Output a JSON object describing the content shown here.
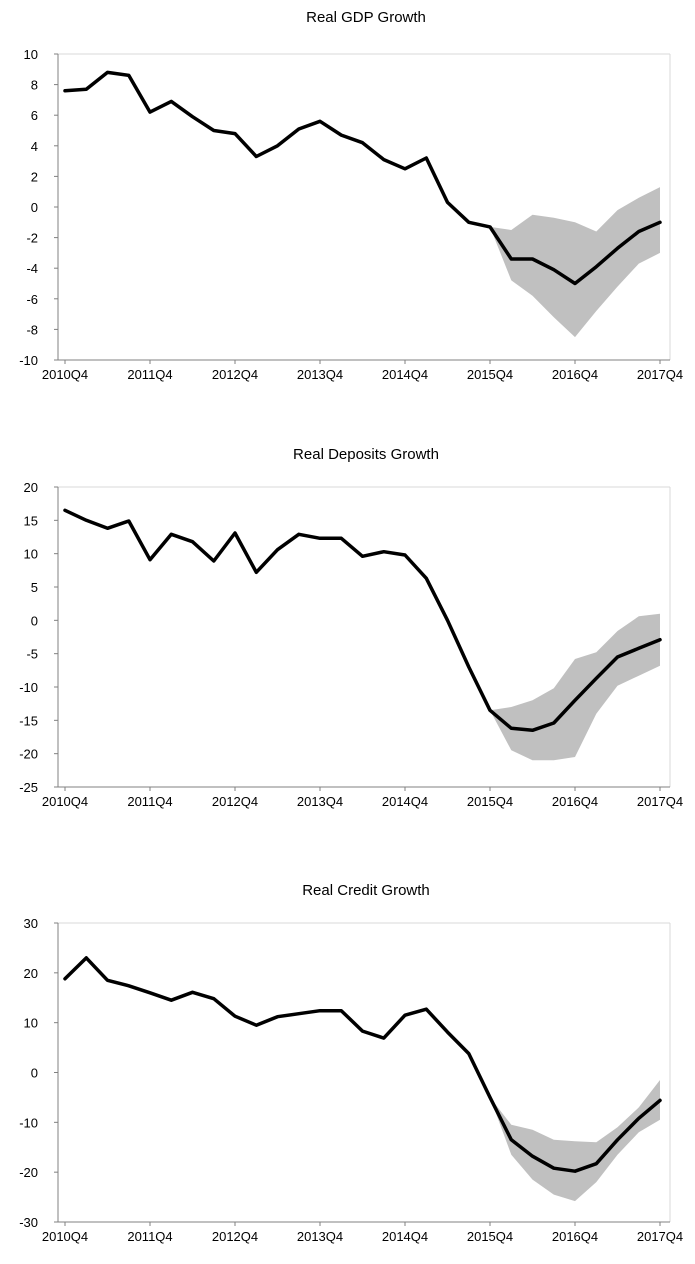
{
  "chart_data": [
    {
      "type": "line",
      "title": "Real GDP Growth",
      "xlabel": "",
      "ylabel": "",
      "ylim": [
        -10,
        10
      ],
      "yticks": [
        10,
        8,
        6,
        4,
        2,
        0,
        -2,
        -4,
        -6,
        -8,
        -10
      ],
      "xtick_labels": [
        "2010Q4",
        "2011Q4",
        "2012Q4",
        "2013Q4",
        "2014Q4",
        "2015Q4",
        "2016Q4",
        "2017Q4"
      ],
      "grid": false,
      "colors": {
        "line": "#000000",
        "band": "#c0c0c0",
        "axis": "#808080"
      },
      "series": [
        {
          "values": [
            7.6,
            7.7,
            8.8,
            8.6,
            6.2,
            6.9,
            5.9,
            5.0,
            4.8,
            3.3,
            4.0,
            5.1,
            5.6,
            4.7,
            4.2,
            3.1,
            2.5,
            3.2,
            0.3,
            -1.0,
            -1.3,
            -3.4,
            -3.4,
            -4.1,
            -5.0,
            -3.9,
            -2.7,
            -1.6,
            -1.0
          ]
        }
      ],
      "band": {
        "start_index": 20,
        "lower": [
          -1.3,
          -4.8,
          -5.8,
          -7.2,
          -8.5,
          -6.8,
          -5.2,
          -3.7,
          -3.0
        ],
        "upper": [
          -1.3,
          -1.5,
          -0.5,
          -0.7,
          -1.0,
          -1.6,
          -0.2,
          0.6,
          1.3
        ]
      }
    },
    {
      "type": "line",
      "title": "Real Deposits Growth",
      "xlabel": "",
      "ylabel": "",
      "ylim": [
        -25,
        20
      ],
      "yticks": [
        20,
        15,
        10,
        5,
        0,
        -5,
        -10,
        -15,
        -20,
        -25
      ],
      "xtick_labels": [
        "2010Q4",
        "2011Q4",
        "2012Q4",
        "2013Q4",
        "2014Q4",
        "2015Q4",
        "2016Q4",
        "2017Q4"
      ],
      "grid": false,
      "colors": {
        "line": "#000000",
        "band": "#c0c0c0",
        "axis": "#808080"
      },
      "series": [
        {
          "values": [
            16.5,
            15.0,
            13.8,
            14.9,
            9.1,
            12.9,
            11.8,
            8.9,
            13.1,
            7.2,
            10.6,
            12.9,
            12.3,
            12.3,
            9.6,
            10.3,
            9.8,
            6.3,
            0.0,
            -7.0,
            -13.5,
            -16.2,
            -16.5,
            -15.4,
            -12.0,
            -8.7,
            -5.5,
            -4.2,
            -2.9
          ]
        }
      ],
      "band": {
        "start_index": 20,
        "lower": [
          -13.5,
          -19.5,
          -21.0,
          -21.0,
          -20.5,
          -14.0,
          -9.8,
          -8.3,
          -6.8
        ],
        "upper": [
          -13.5,
          -13.0,
          -12.0,
          -10.2,
          -5.8,
          -4.8,
          -1.6,
          0.6,
          1.0
        ]
      }
    },
    {
      "type": "line",
      "title": "Real Credit Growth",
      "xlabel": "",
      "ylabel": "",
      "ylim": [
        -30,
        30
      ],
      "yticks": [
        30,
        20,
        10,
        0,
        -10,
        -20,
        -30
      ],
      "xtick_labels": [
        "2010Q4",
        "2011Q4",
        "2012Q4",
        "2013Q4",
        "2014Q4",
        "2015Q4",
        "2016Q4",
        "2017Q4"
      ],
      "grid": false,
      "colors": {
        "line": "#000000",
        "band": "#c0c0c0",
        "axis": "#808080"
      },
      "series": [
        {
          "values": [
            18.8,
            23.0,
            18.5,
            17.4,
            16.0,
            14.5,
            16.1,
            14.8,
            11.3,
            9.5,
            11.2,
            11.8,
            12.4,
            12.4,
            8.3,
            6.9,
            11.5,
            12.7,
            8.1,
            3.8,
            -5.0,
            -13.5,
            -16.8,
            -19.2,
            -19.8,
            -18.3,
            -13.5,
            -9.2,
            -5.6
          ]
        }
      ],
      "band": {
        "start_index": 20,
        "lower": [
          -5.0,
          -16.5,
          -21.5,
          -24.5,
          -25.8,
          -22.0,
          -16.5,
          -12.0,
          -9.5
        ],
        "upper": [
          -5.0,
          -10.5,
          -11.5,
          -13.5,
          -13.8,
          -14.0,
          -11.0,
          -7.0,
          -1.5
        ]
      }
    }
  ]
}
